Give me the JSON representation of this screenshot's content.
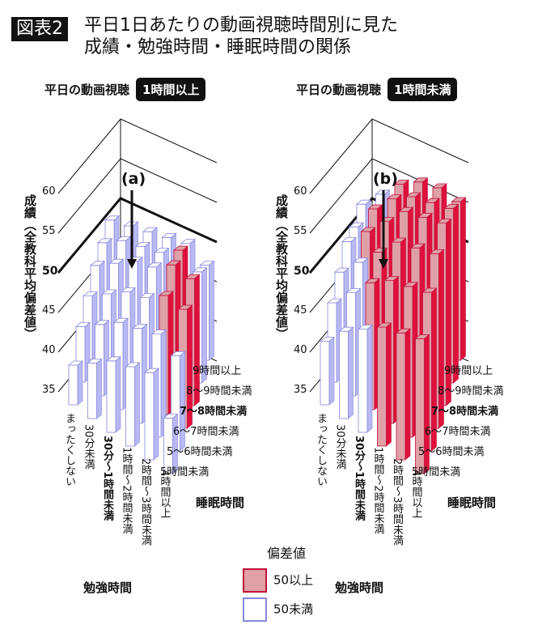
{
  "header": {
    "tag": "図表2",
    "title_line1": "平日1日あたりの動画視聴時間別に見た",
    "title_line2": "成績・勉強時間・睡眠時間の関係"
  },
  "colors": {
    "above": "#e0a0a8",
    "above_side": "#e0103c",
    "above_edge": "#c0103a",
    "below": "#ffffff",
    "below_side": "#b8b8f4",
    "below_edge": "#8888dd"
  },
  "chart_data": [
    {
      "type": "bar3d",
      "subtitle_prefix": "平日の動画視聴",
      "subtitle_badge": "1時間以上",
      "annotation": "(a)",
      "ylabel": "成績（全教科平均偏差値）",
      "yticks": [
        35,
        40,
        45,
        50,
        55,
        60
      ],
      "ylim": [
        35,
        60
      ],
      "threshold": 50,
      "xlabel": "勉強時間",
      "zlabel": "睡眠時間",
      "study_categories": [
        "まったくしない",
        "30分未満",
        "30分〜1時間未満",
        "1時間〜2時間未満",
        "2時間〜3時間未満",
        "4時間以上"
      ],
      "sleep_categories": [
        "9時間以上",
        "8〜9時間未満",
        "7〜8時間未満",
        "6〜7時間未満",
        "5〜6時間未満",
        "5時間未満"
      ],
      "values": [
        [
          44,
          44,
          44,
          43,
          42,
          40
        ],
        [
          45,
          46,
          46,
          45,
          44,
          42
        ],
        [
          46,
          47,
          48,
          47,
          46,
          44
        ],
        [
          47,
          48,
          49,
          48,
          47,
          45
        ],
        [
          48,
          50,
          51,
          50,
          48,
          46
        ],
        [
          47,
          49,
          51,
          50,
          47,
          42
        ]
      ]
    },
    {
      "type": "bar3d",
      "subtitle_prefix": "平日の動画視聴",
      "subtitle_badge": "1時間未満",
      "annotation": "(b)",
      "ylabel": "成績（全教科平均偏差値）",
      "yticks": [
        35,
        40,
        45,
        50,
        55,
        60
      ],
      "ylim": [
        35,
        60
      ],
      "threshold": 50,
      "xlabel": "勉強時間",
      "zlabel": "睡眠時間",
      "study_categories": [
        "まったくしない",
        "30分未満",
        "30分〜1時間未満",
        "1時間〜2時間未満",
        "2時間〜3時間未満",
        "4時間以上"
      ],
      "sleep_categories": [
        "9時間以上",
        "8〜9時間未満",
        "7〜8時間未満",
        "6〜7時間未満",
        "5〜6時間未満",
        "5時間未満"
      ],
      "values": [
        [
          46,
          46,
          47,
          46,
          45,
          43
        ],
        [
          49,
          50,
          50,
          49,
          48,
          46
        ],
        [
          52,
          53,
          53,
          52,
          51,
          48
        ],
        [
          54,
          55,
          56,
          55,
          53,
          50
        ],
        [
          55,
          56,
          57,
          56,
          54,
          51
        ],
        [
          55,
          57,
          58,
          57,
          55,
          52
        ]
      ]
    }
  ],
  "legend": {
    "title": "偏差値",
    "above": "50以上",
    "below": "50未満"
  }
}
